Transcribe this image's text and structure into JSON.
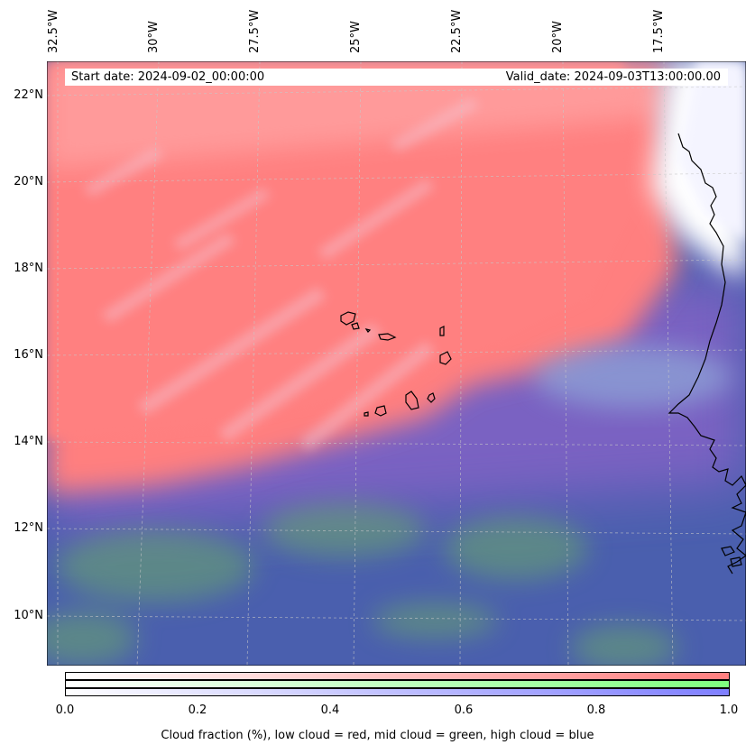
{
  "map": {
    "start_date": "Start date: 2024-09-02_00:00:00",
    "valid_date": "Valid_date: 2024-09-03T13:00:00.00",
    "longitude_labels": [
      "32.5°W",
      "30°W",
      "27.5°W",
      "25°W",
      "22.5°W",
      "20°W",
      "17.5°W"
    ],
    "latitude_labels": [
      "22°N",
      "20°N",
      "18°N",
      "16°N",
      "14°N",
      "12°N",
      "10°N"
    ],
    "layers": {
      "low_cloud_color": "#ff7f7f",
      "mid_cloud_color": "#7fff7f",
      "high_cloud_color": "#7f7fff",
      "clear_color": "#ffffff",
      "coastline_color": "#000000"
    }
  },
  "colorbar": {
    "label": "Cloud fraction (%), low cloud = red, mid cloud = green, high cloud = blue",
    "ticks": [
      "0.0",
      "0.2",
      "0.4",
      "0.6",
      "0.8",
      "1.0"
    ],
    "range": [
      0.0,
      1.0
    ]
  }
}
